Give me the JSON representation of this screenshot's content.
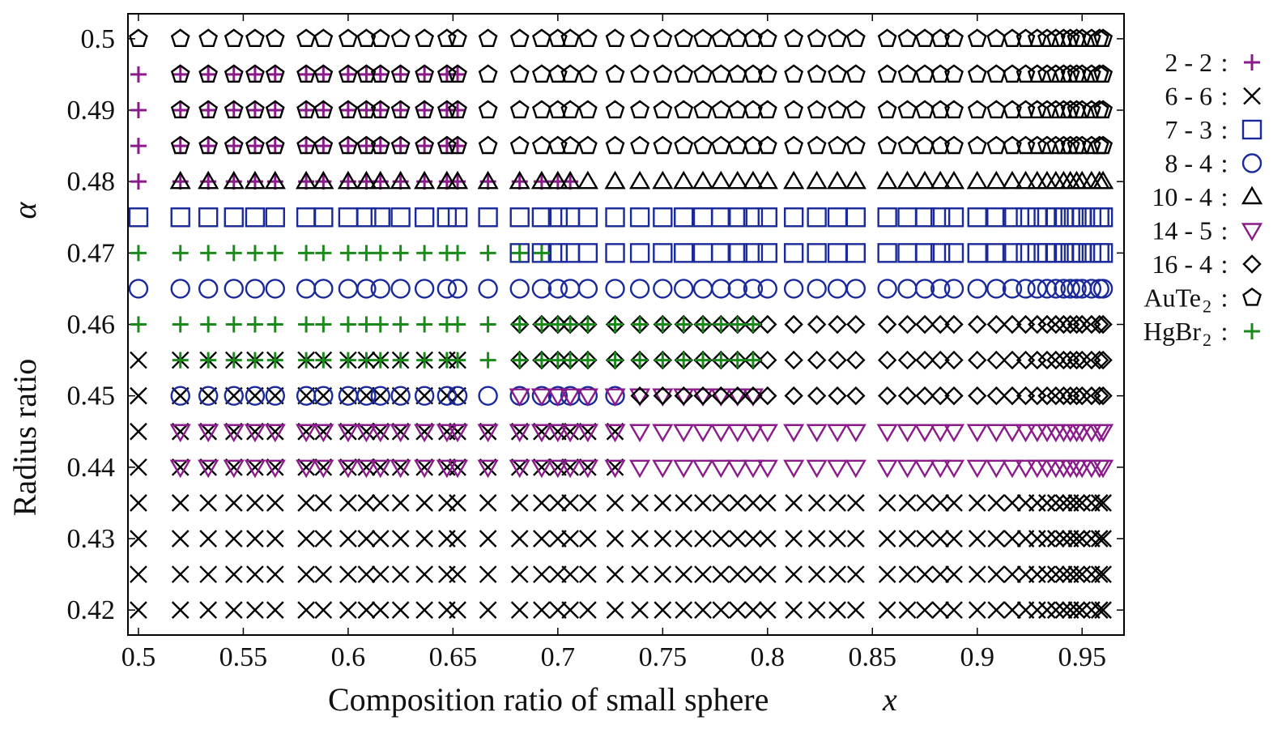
{
  "chart_data": {
    "type": "scatter",
    "xlabel": "Composition ratio of small sphere",
    "xlabel_var": "x",
    "ylabel": "Radius ratio",
    "ylabel_var": "α",
    "xlim": [
      0.495,
      0.97
    ],
    "ylim": [
      0.4165,
      0.5035
    ],
    "x_ticks": [
      0.5,
      0.55,
      0.6,
      0.65,
      0.7,
      0.75,
      0.8,
      0.85,
      0.9,
      0.95
    ],
    "x_tick_labels": [
      "0.5",
      "0.55",
      "0.6",
      "0.65",
      "0.7",
      "0.75",
      "0.8",
      "0.85",
      "0.9",
      "0.95"
    ],
    "y_ticks": [
      0.42,
      0.43,
      0.44,
      0.45,
      0.46,
      0.47,
      0.48,
      0.49,
      0.5
    ],
    "y_tick_labels": [
      "0.42",
      "0.43",
      "0.44",
      "0.45",
      "0.46",
      "0.47",
      "0.48",
      "0.49",
      "0.5"
    ],
    "grid": false,
    "legend_position": "right, outside plot",
    "x_columns": [
      0.5,
      0.52,
      0.5333,
      0.5455,
      0.5556,
      0.5652,
      0.58,
      0.5882,
      0.6,
      0.6087,
      0.6154,
      0.625,
      0.6364,
      0.6471,
      0.6522,
      0.6667,
      0.6818,
      0.6923,
      0.7,
      0.7059,
      0.7143,
      0.7273,
      0.7391,
      0.75,
      0.76,
      0.7692,
      0.7778,
      0.7857,
      0.7931,
      0.8,
      0.8125,
      0.8235,
      0.8333,
      0.8421,
      0.8571,
      0.8667,
      0.875,
      0.8824,
      0.8889,
      0.9,
      0.9091,
      0.9167,
      0.9231,
      0.9286,
      0.9333,
      0.9375,
      0.9412,
      0.9444,
      0.9474,
      0.95,
      0.9545,
      0.9583,
      0.96
    ],
    "series": [
      {
        "name": "2 - 2",
        "marker": "plus",
        "color": "#8b1a8b",
        "points": [
          {
            "y": 0.495,
            "x_range": [
              0.5,
              0.6522
            ]
          },
          {
            "y": 0.49,
            "x_range": [
              0.5,
              0.6522
            ]
          },
          {
            "y": 0.485,
            "x_range": [
              0.5,
              0.6522
            ]
          },
          {
            "y": 0.48,
            "x_range": [
              0.5,
              0.7059
            ]
          }
        ]
      },
      {
        "name": "6 - 6",
        "marker": "cross",
        "color": "#000000",
        "points": [
          {
            "y": 0.42,
            "x_range": [
              0.5,
              0.96
            ]
          },
          {
            "y": 0.425,
            "x_range": [
              0.5,
              0.96
            ]
          },
          {
            "y": 0.43,
            "x_range": [
              0.5,
              0.96
            ]
          },
          {
            "y": 0.435,
            "x_range": [
              0.5,
              0.96
            ]
          },
          {
            "y": 0.44,
            "x_range": [
              0.5,
              0.7273
            ]
          },
          {
            "y": 0.445,
            "x_range": [
              0.5,
              0.7273
            ]
          },
          {
            "y": 0.45,
            "x_range": [
              0.5,
              0.6522
            ]
          },
          {
            "y": 0.455,
            "x_range": [
              0.5,
              0.6522
            ]
          }
        ]
      },
      {
        "name": "7 - 3",
        "marker": "square",
        "color": "#1a2a9a",
        "points": [
          {
            "y": 0.475,
            "x_range": [
              0.5,
              0.96
            ]
          },
          {
            "y": 0.47,
            "x_range": [
              0.6818,
              0.96
            ]
          }
        ]
      },
      {
        "name": "8 - 4",
        "marker": "circle",
        "color": "#1a2a9a",
        "points": [
          {
            "y": 0.465,
            "x_range": [
              0.5,
              0.96
            ]
          },
          {
            "y": 0.45,
            "x_range": [
              0.52,
              0.7273
            ]
          }
        ]
      },
      {
        "name": "10 - 4",
        "marker": "triangle-up",
        "color": "#000000",
        "points": [
          {
            "y": 0.48,
            "x_range": [
              0.52,
              0.96
            ]
          }
        ]
      },
      {
        "name": "14 - 5",
        "marker": "triangle-down",
        "color": "#8b1a8b",
        "points": [
          {
            "y": 0.445,
            "x_range": [
              0.52,
              0.96
            ]
          },
          {
            "y": 0.44,
            "x_range": [
              0.52,
              0.96
            ]
          },
          {
            "y": 0.45,
            "x_range": [
              0.6818,
              0.7931
            ]
          }
        ]
      },
      {
        "name": "16 - 4",
        "marker": "diamond",
        "color": "#000000",
        "points": [
          {
            "y": 0.46,
            "x_range": [
              0.6818,
              0.96
            ]
          },
          {
            "y": 0.455,
            "x_range": [
              0.6818,
              0.96
            ]
          },
          {
            "y": 0.45,
            "x_range": [
              0.7391,
              0.96
            ]
          }
        ]
      },
      {
        "name": "AuTe2",
        "marker": "pentagon",
        "color": "#000000",
        "points": [
          {
            "y": 0.5,
            "x_range": [
              0.5,
              0.96
            ]
          },
          {
            "y": 0.495,
            "x_range": [
              0.52,
              0.96
            ]
          },
          {
            "y": 0.49,
            "x_range": [
              0.52,
              0.96
            ]
          },
          {
            "y": 0.485,
            "x_range": [
              0.52,
              0.96
            ]
          }
        ]
      },
      {
        "name": "HgBr2",
        "marker": "plus",
        "color": "#1a8a1a",
        "points": [
          {
            "y": 0.47,
            "x_range": [
              0.5,
              0.6923
            ]
          },
          {
            "y": 0.46,
            "x_range": [
              0.5,
              0.7931
            ]
          },
          {
            "y": 0.455,
            "x_range": [
              0.52,
              0.7931
            ]
          }
        ]
      }
    ]
  },
  "legend": [
    {
      "label": "2 - 2",
      "sub": "",
      "marker": "plus",
      "color": "#8b1a8b"
    },
    {
      "label": "6 - 6",
      "sub": "",
      "marker": "cross",
      "color": "#000000"
    },
    {
      "label": "7 - 3",
      "sub": "",
      "marker": "square",
      "color": "#1a2a9a"
    },
    {
      "label": "8 - 4",
      "sub": "",
      "marker": "circle",
      "color": "#1a2a9a"
    },
    {
      "label": "10 - 4",
      "sub": "",
      "marker": "triangle-up",
      "color": "#000000"
    },
    {
      "label": "14 - 5",
      "sub": "",
      "marker": "triangle-down",
      "color": "#8b1a8b"
    },
    {
      "label": "16 - 4",
      "sub": "",
      "marker": "diamond",
      "color": "#000000"
    },
    {
      "label": "AuTe",
      "sub": "2",
      "marker": "pentagon",
      "color": "#000000"
    },
    {
      "label": "HgBr",
      "sub": "2",
      "marker": "plus",
      "color": "#1a8a1a"
    }
  ]
}
